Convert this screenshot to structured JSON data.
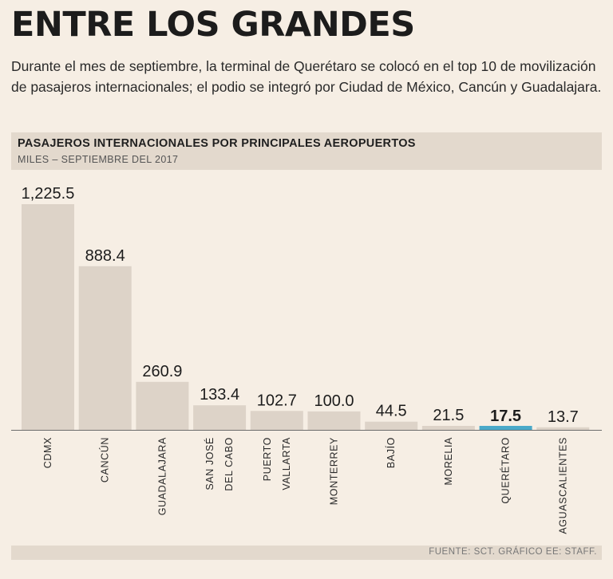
{
  "headline": "ENTRE LOS GRANDES",
  "description": "Durante el mes de septiembre, la terminal de Querétaro se colocó en el top 10 de movilización de pasajeros internacionales; el podio se integró por Ciudad de México, Cancún y Guadalajara.",
  "source": "FUENTE: SCT. GRÁFICO EE: STAFF.",
  "colors": {
    "bar": "#ddd3c8",
    "highlight": "#4aa9c9",
    "baseline": "#6c6c6c",
    "background": "#f6eee4"
  },
  "chart_data": {
    "type": "bar",
    "title": "PASAJEROS INTERNACIONALES POR PRINCIPALES AEROPUERTOS",
    "subtitle": "MILES – SEPTIEMBRE DEL 2017",
    "xlabel": "",
    "ylabel": "",
    "ylim": [
      0,
      1225.5
    ],
    "grid": false,
    "categories": [
      [
        "CDMX"
      ],
      [
        "CANCÚN"
      ],
      [
        "GUADALAJARA"
      ],
      [
        "SAN JOSÉ",
        "DEL CABO"
      ],
      [
        "PUERTO",
        "VALLARTA"
      ],
      [
        "MONTERREY"
      ],
      [
        "BAJÍO"
      ],
      [
        "MORELIA"
      ],
      [
        "QUERÉTARO"
      ],
      [
        "AGUASCALIENTES"
      ]
    ],
    "values": [
      1225.5,
      888.4,
      260.9,
      133.4,
      102.7,
      100.0,
      44.5,
      21.5,
      17.5,
      13.7
    ],
    "labels": [
      "1,225.5",
      "888.4",
      "260.9",
      "133.4",
      "102.7",
      "100.0",
      "44.5",
      "21.5",
      "17.5",
      "13.7"
    ],
    "highlight_index": 8
  }
}
